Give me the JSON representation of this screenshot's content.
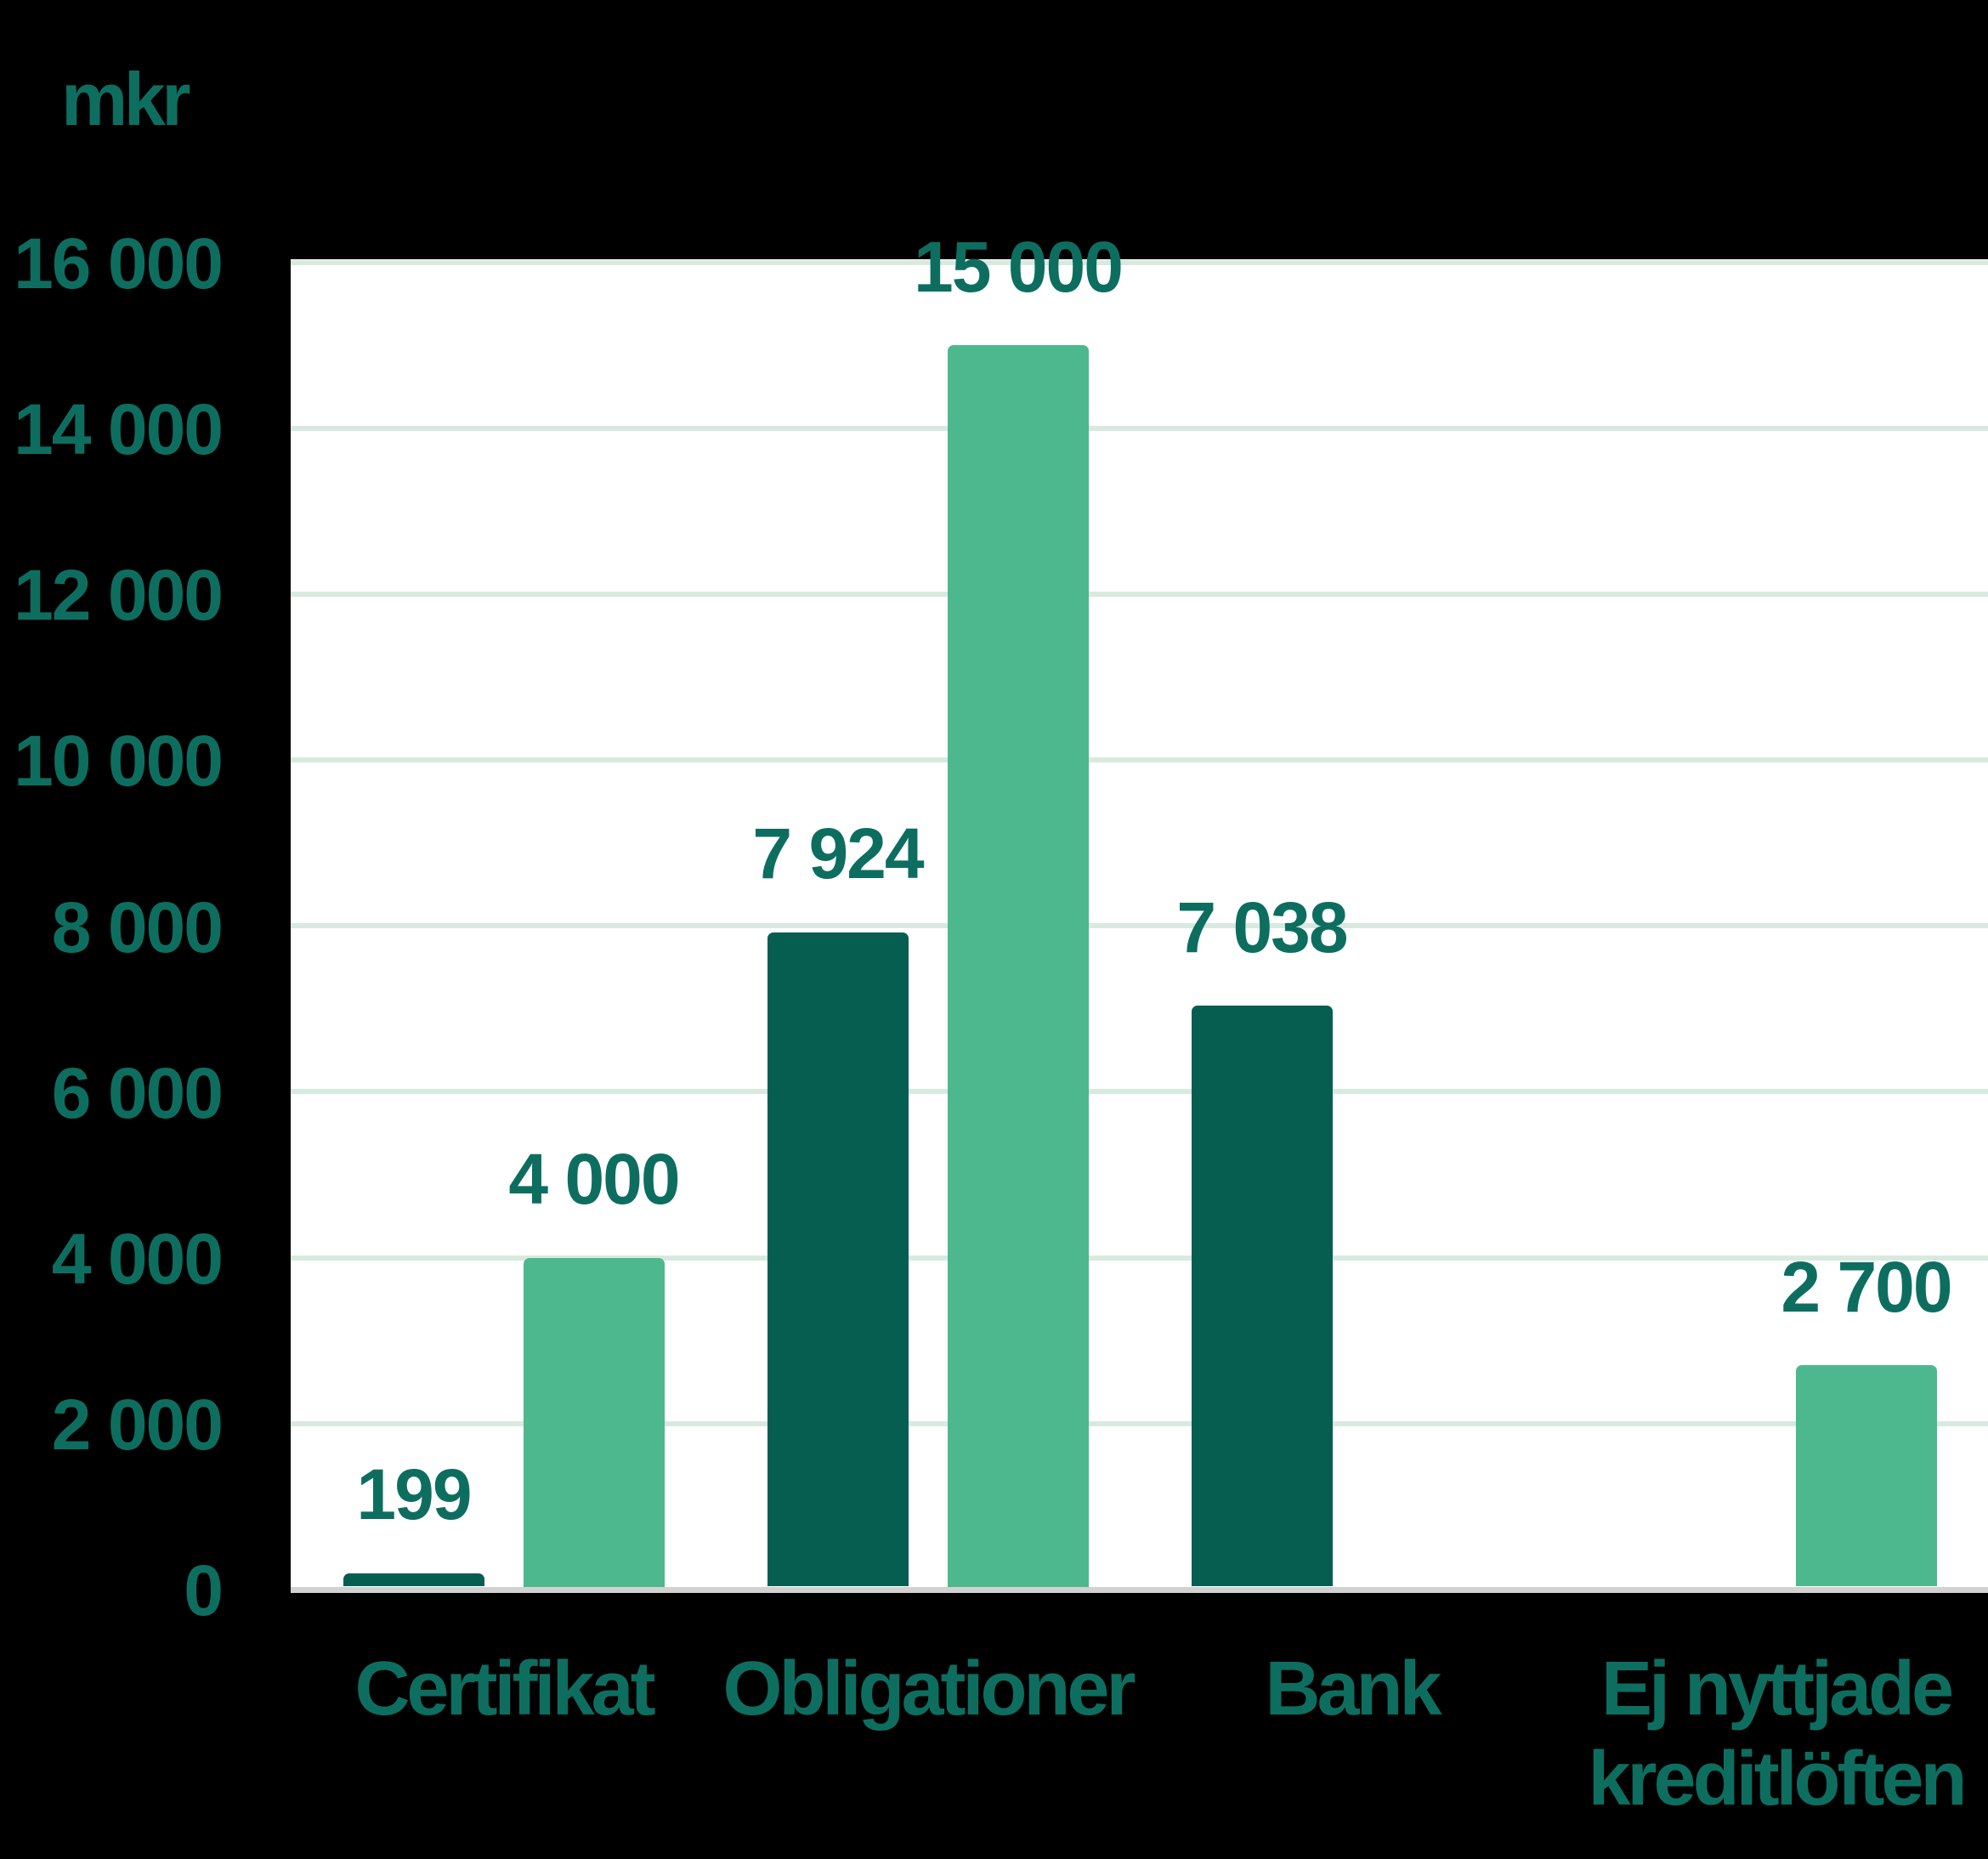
{
  "chart_data": {
    "type": "bar",
    "title": "",
    "ylabel": "mkr",
    "xlabel": "",
    "ylim": [
      0,
      16000
    ],
    "ytick_interval": 2000,
    "grid": true,
    "legend_position": "none",
    "categories": [
      "Certifikat",
      "Obligationer",
      "Bank",
      "Ej nyttjade kreditlöften"
    ],
    "category_label_lines": [
      [
        "Certifikat"
      ],
      [
        "Obligationer"
      ],
      [
        "Bank"
      ],
      [
        "Ej nyttjade",
        "kreditlöften"
      ]
    ],
    "yticks": [
      {
        "value": 0,
        "label": "0"
      },
      {
        "value": 2000,
        "label": "2 000"
      },
      {
        "value": 4000,
        "label": "4 000"
      },
      {
        "value": 6000,
        "label": "6 000"
      },
      {
        "value": 8000,
        "label": "8 000"
      },
      {
        "value": 10000,
        "label": "10 000"
      },
      {
        "value": 12000,
        "label": "12 000"
      },
      {
        "value": 14000,
        "label": "14 000"
      },
      {
        "value": 16000,
        "label": "16 000"
      }
    ],
    "series": [
      {
        "name": "dark-green-series",
        "color": "#065e51",
        "values": [
          199,
          7924,
          7038,
          null
        ],
        "labels": [
          "199",
          "7 924",
          "7 038",
          null
        ]
      },
      {
        "name": "light-green-series",
        "color": "#4db88e",
        "values": [
          4000,
          15000,
          null,
          2700
        ],
        "labels": [
          "4 000",
          "15 000",
          null,
          "2 700"
        ]
      }
    ]
  },
  "colors": {
    "background": "#000000",
    "plot_background": "#ffffff",
    "gridline": "#d8eadf",
    "axis_line": "#d2d2d2",
    "text": "#0d6e60",
    "bar_dark": "#065e51",
    "bar_light": "#4db88e"
  }
}
